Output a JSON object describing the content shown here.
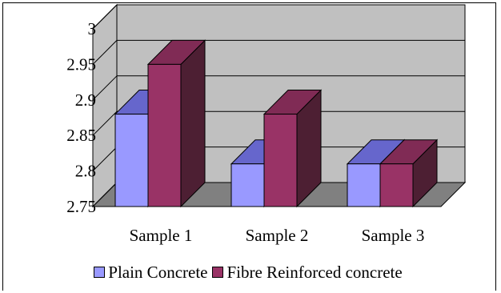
{
  "chart_data": {
    "type": "bar",
    "categories": [
      "Sample 1",
      "Sample 2",
      "Sample 3"
    ],
    "series": [
      {
        "name": "Plain Concrete",
        "values": [
          2.88,
          2.81,
          2.81
        ],
        "color": "#9999ff",
        "top_color": "#6666cc",
        "side_color": "#4d4d99"
      },
      {
        "name": "Fibre Reinforced concrete",
        "values": [
          2.95,
          2.88,
          2.81
        ],
        "color": "#993366",
        "top_color": "#802b55",
        "side_color": "#4d1f33"
      }
    ],
    "ylim": [
      2.75,
      3
    ],
    "yticks": [
      "2.75",
      "2.8",
      "2.85",
      "2.9",
      "2.95",
      "3"
    ],
    "title": "",
    "xlabel": "",
    "ylabel": "",
    "wall_color": "#c0c0c0",
    "floor_color": "#808080",
    "legend_position": "bottom",
    "grid": true
  }
}
